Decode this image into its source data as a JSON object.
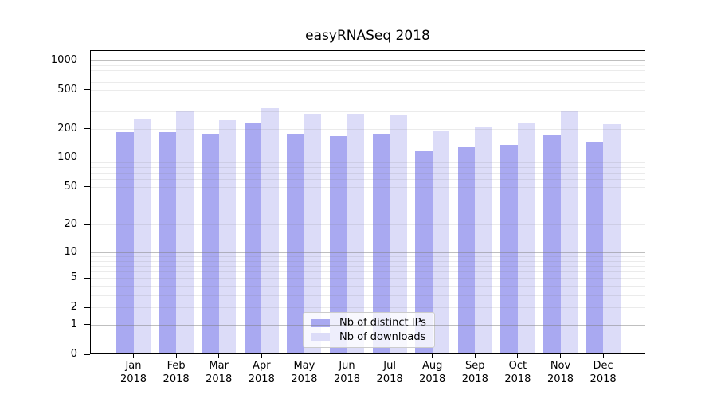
{
  "chart_data": {
    "type": "bar",
    "title": "easyRNASeq 2018",
    "months": [
      "Jan",
      "Feb",
      "Mar",
      "Apr",
      "May",
      "Jun",
      "Jul",
      "Aug",
      "Sep",
      "Oct",
      "Nov",
      "Dec"
    ],
    "year": "2018",
    "series": [
      {
        "name": "Nb of distinct IPs",
        "color": "#a9a9f1",
        "values": [
          185,
          185,
          178,
          232,
          176,
          168,
          178,
          118,
          130,
          136,
          175,
          145
        ]
      },
      {
        "name": "Nb of downloads",
        "color": "#dcdcf8",
        "values": [
          250,
          307,
          245,
          325,
          284,
          285,
          280,
          193,
          207,
          228,
          307,
          224
        ]
      }
    ],
    "y_axis": {
      "scale": "log1p",
      "tick_values": [
        0,
        1,
        2,
        5,
        10,
        20,
        50,
        100,
        200,
        500,
        1000
      ],
      "major_gridlines": [
        1,
        10,
        100,
        1000
      ],
      "minor_gridlines": [
        2,
        3,
        4,
        5,
        6,
        7,
        8,
        9,
        20,
        30,
        40,
        50,
        60,
        70,
        80,
        90,
        200,
        300,
        400,
        500,
        600,
        700,
        800,
        900
      ],
      "range_max": 1280
    },
    "legend": {
      "position": "lower center",
      "entries": [
        "Nb of distinct IPs",
        "Nb of downloads"
      ]
    },
    "grid": true
  },
  "colors": {
    "background": "#ffffff",
    "spine": "#000000",
    "text": "#000000",
    "major_grid": "rgba(128,128,128,0.50)",
    "minor_grid": "rgba(128,128,128,0.16)",
    "legend_border": "#cccccc",
    "legend_background": "rgba(255,255,255,0.8)",
    "series_distinct_ips": "#a9a9f1",
    "series_downloads": "#dcdcf8"
  }
}
